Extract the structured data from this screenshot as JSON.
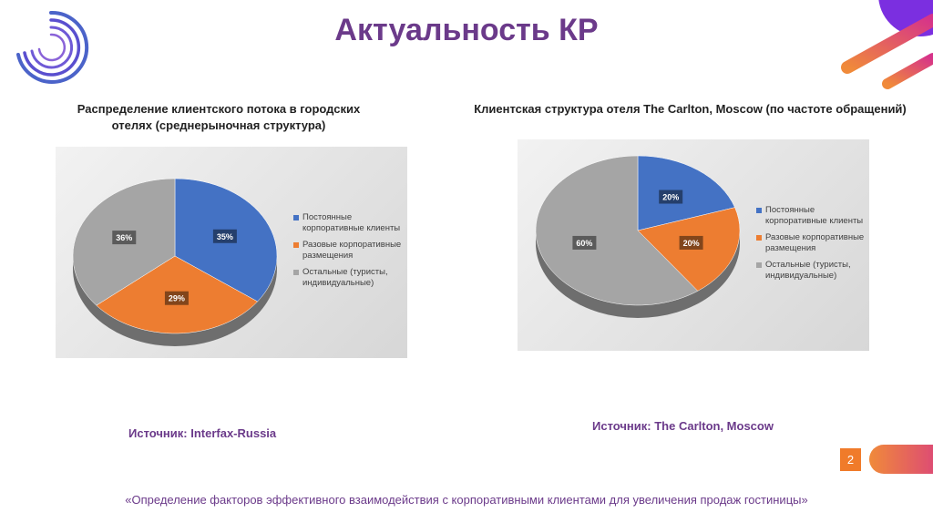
{
  "header": {
    "title": "Актуальность КР"
  },
  "page_number": "2",
  "footer": "«Определение факторов эффективного взаимодействия с корпоративными клиентами для увеличения продаж гостиницы»",
  "colors": {
    "blue": "#4472c4",
    "orange": "#ed7d31",
    "gray": "#a5a5a5",
    "accent": "#6b3a8a",
    "logo_blue": "#4b63c9"
  },
  "logo": {
    "icon": "concentric-arcs-logo"
  },
  "chart_data": [
    {
      "type": "pie",
      "title": "Распределение клиентского потока в городских отелях (среднерыночная структура)",
      "categories": [
        "Постоянные корпоративные клиенты",
        "Разовые корпоративные размещения",
        "Остальные (туристы, индивидуальные)"
      ],
      "values": [
        35,
        29,
        36
      ],
      "labels": [
        "35%",
        "29%",
        "36%"
      ],
      "colors": [
        "#4472c4",
        "#ed7d31",
        "#a5a5a5"
      ],
      "legend": "right",
      "source": "Источник: Interfax-Russia"
    },
    {
      "type": "pie",
      "title": "Клиентская структура отеля The Carlton, Moscow (по частоте обращений)",
      "categories": [
        "Постоянные корпоративные клиенты",
        "Разовые корпоративные размещения",
        "Остальные (туристы, индивидуальные)"
      ],
      "values": [
        20,
        20,
        60
      ],
      "labels": [
        "20%",
        "20%",
        "60%"
      ],
      "colors": [
        "#4472c4",
        "#ed7d31",
        "#a5a5a5"
      ],
      "legend": "right",
      "source": "Источник: The Carlton, Moscow"
    }
  ]
}
